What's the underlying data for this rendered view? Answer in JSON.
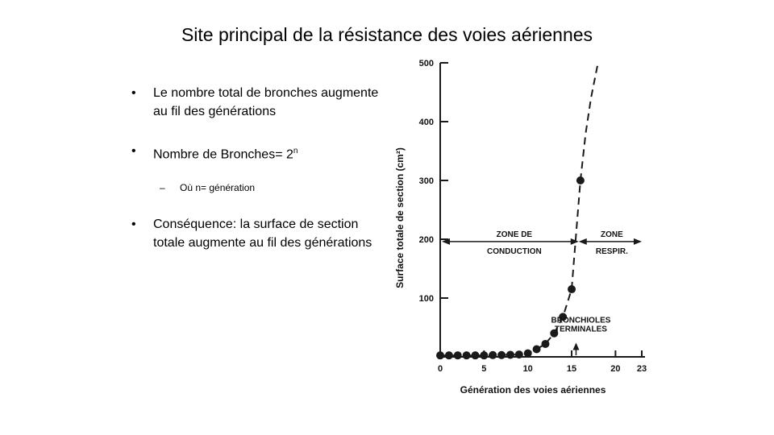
{
  "slide": {
    "title": "Site principal de la résistance des voies aériennes",
    "bullets": [
      {
        "text": "Le nombre total de bronches augmente au fil des générations"
      },
      {
        "text": "Nombre de Bronches= 2",
        "sup": "n"
      },
      {
        "text": "Où n= génération"
      },
      {
        "text": "Conséquence: la surface de section totale augmente au fil des générations"
      }
    ]
  },
  "chart_data": {
    "type": "scatter",
    "xlabel": "Génération des voies aériennes",
    "ylabel": "Surface totale de section (cm²)",
    "xlim": [
      0,
      23
    ],
    "ylim": [
      0,
      500
    ],
    "x_ticks": [
      0,
      5,
      10,
      15,
      20,
      23
    ],
    "y_ticks": [
      100,
      200,
      300,
      400,
      500
    ],
    "points": {
      "x": [
        0,
        1,
        2,
        3,
        4,
        5,
        6,
        7,
        8,
        9,
        10,
        11,
        12,
        13,
        14,
        15,
        16
      ],
      "y": [
        2.5,
        2.5,
        2.5,
        2.5,
        2.5,
        2.5,
        3,
        3,
        3.5,
        4,
        6,
        13,
        22,
        40,
        68,
        115,
        300
      ]
    },
    "curve": {
      "style": "dashed",
      "x": [
        0,
        5,
        9,
        10,
        11,
        12,
        13,
        14,
        15,
        16,
        16.6,
        17.2,
        18
      ],
      "y": [
        2.5,
        2.5,
        4,
        6,
        13,
        22,
        40,
        68,
        115,
        300,
        380,
        440,
        500
      ]
    },
    "annotations": {
      "zone_conduction": [
        "ZONE DE",
        "CONDUCTION"
      ],
      "zone_respir": [
        "ZONE",
        "RESPIR."
      ],
      "bronchioles": [
        "BRONCHIOLES",
        "TERMINALES"
      ]
    }
  }
}
